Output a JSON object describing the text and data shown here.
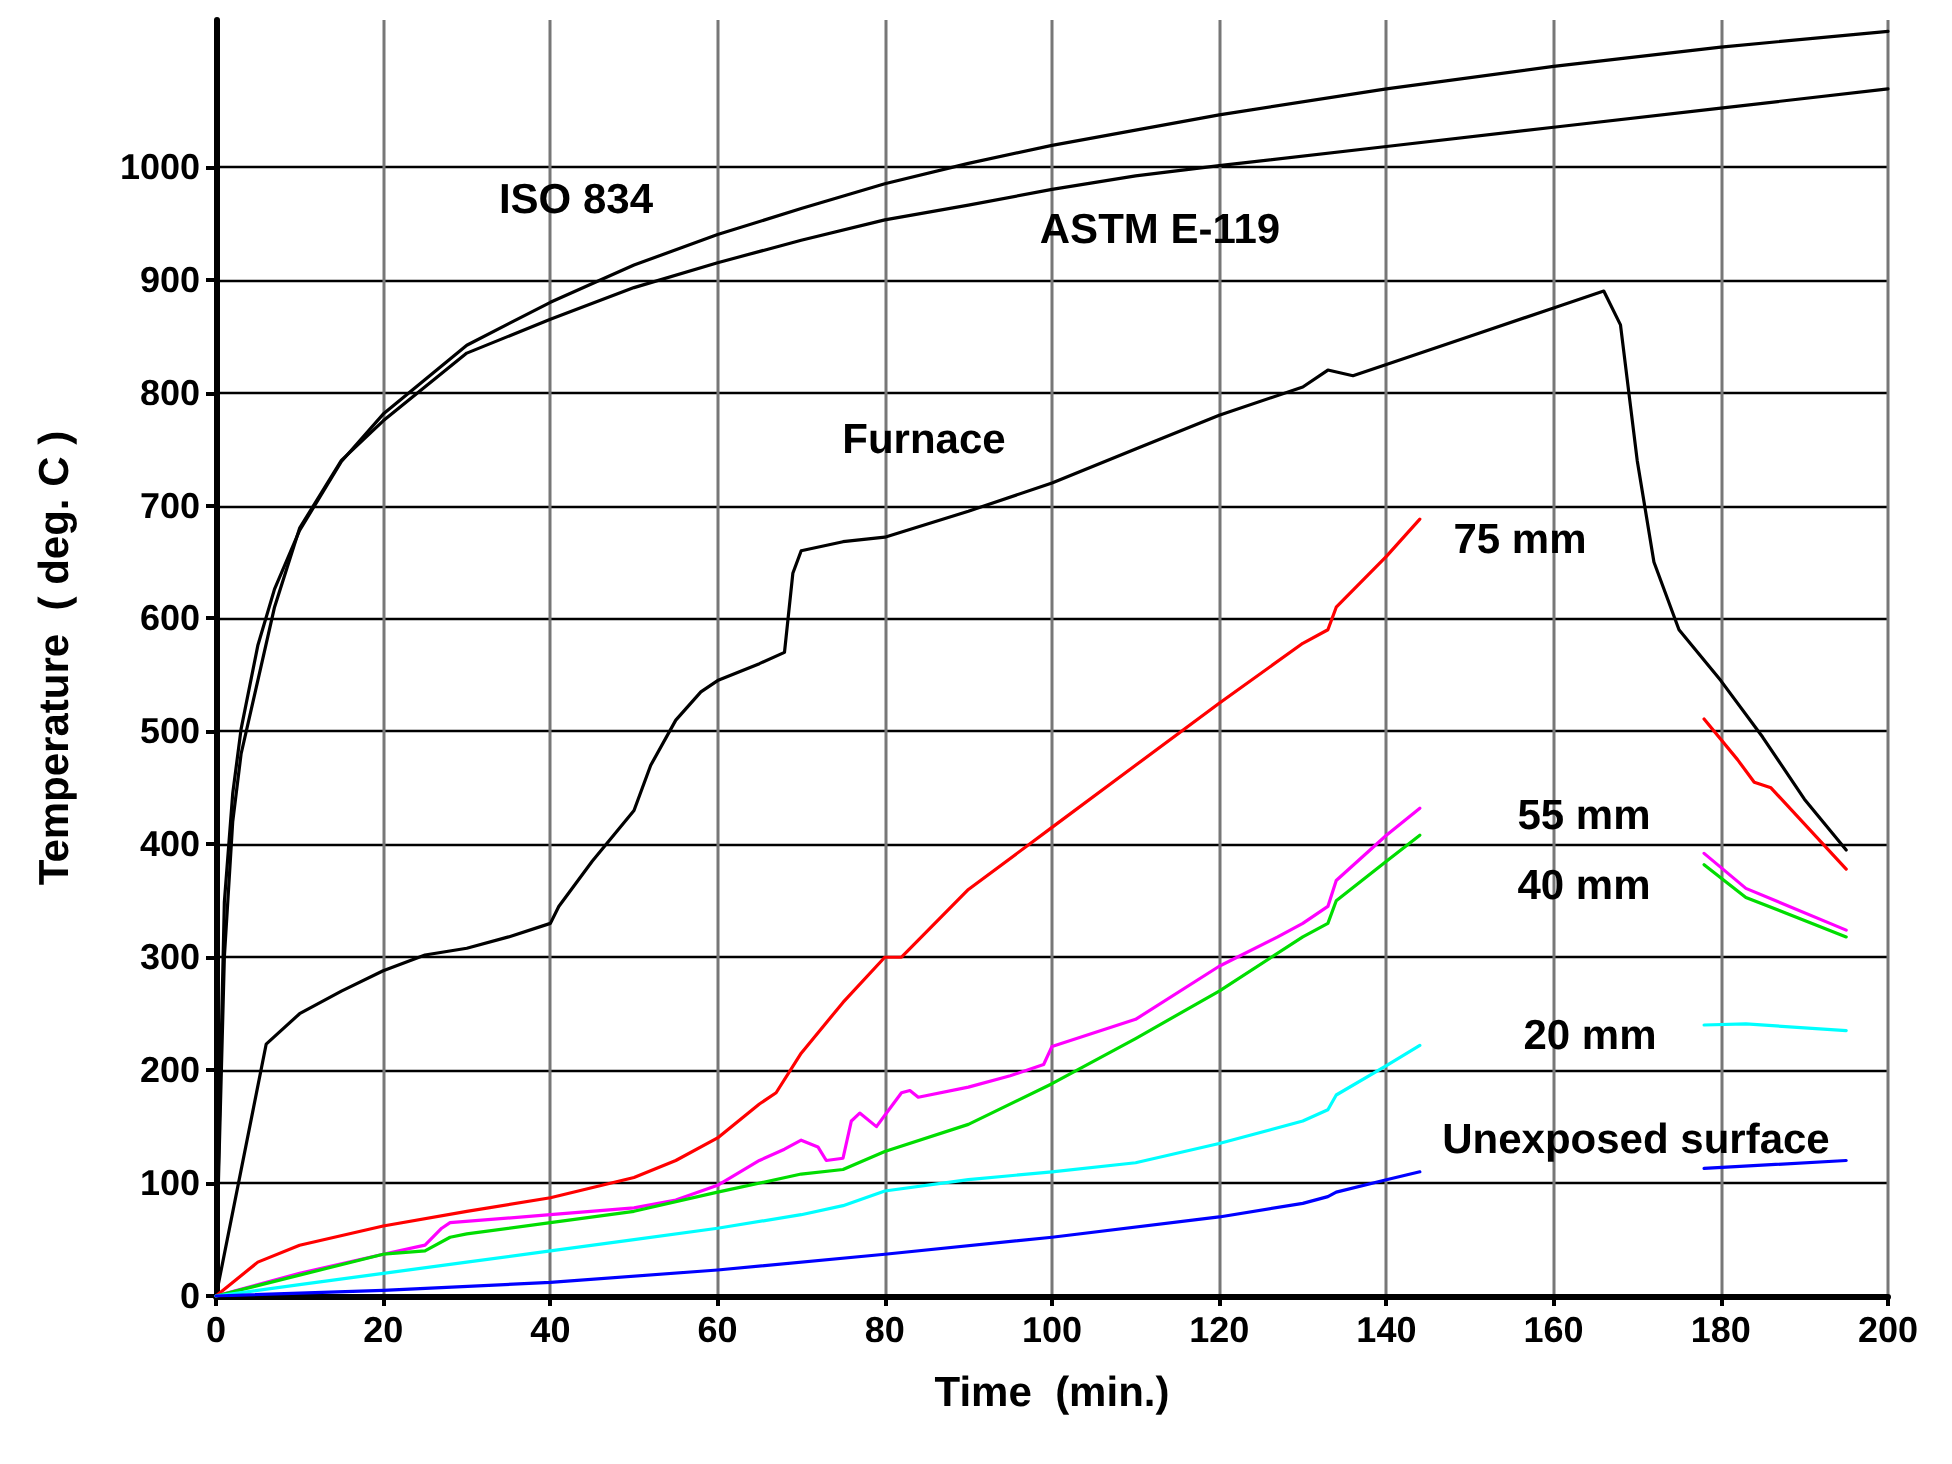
{
  "chart_data": {
    "type": "line",
    "xlabel": "Time  (min.)",
    "ylabel": "Temperature  ( deg. C )",
    "xlim": [
      0,
      200
    ],
    "xticks": [
      0,
      20,
      40,
      60,
      80,
      100,
      120,
      140,
      160,
      180,
      200
    ],
    "ylim": [
      0,
      1130
    ],
    "yticks": [
      0,
      100,
      200,
      300,
      400,
      500,
      600,
      700,
      800,
      900,
      1000
    ],
    "grid": true,
    "legend": false,
    "marker": "none",
    "line_style": "solid",
    "series": [
      {
        "name": "ISO 834",
        "color": "#000000",
        "x": [
          0,
          1,
          2,
          3,
          5,
          7,
          10,
          15,
          20,
          30,
          40,
          50,
          60,
          70,
          80,
          90,
          100,
          120,
          140,
          160,
          180,
          200
        ],
        "values": [
          20,
          349,
          445,
          502,
          576,
          626,
          678,
          739,
          781,
          842,
          880,
          913,
          940,
          963,
          985,
          1003,
          1019,
          1046,
          1069,
          1089,
          1106,
          1120
        ]
      },
      {
        "name": "ASTM E-119",
        "color": "#000000",
        "x": [
          0,
          1,
          2,
          3,
          5,
          7,
          10,
          15,
          20,
          30,
          40,
          50,
          60,
          70,
          80,
          90,
          100,
          110,
          120,
          140,
          160,
          180,
          200
        ],
        "values": [
          20,
          300,
          420,
          480,
          545,
          610,
          680,
          740,
          775,
          835,
          865,
          893,
          915,
          935,
          953,
          966,
          980,
          992,
          1001,
          1018,
          1035,
          1052,
          1069
        ]
      },
      {
        "name": "Furnace",
        "color": "#000000",
        "x": [
          0,
          6,
          10,
          15,
          20,
          25,
          30,
          35,
          40,
          41,
          45,
          50,
          52,
          55,
          58,
          60,
          65,
          68,
          69,
          70,
          75,
          80,
          90,
          100,
          110,
          120,
          130,
          133,
          136,
          140,
          150,
          160,
          166,
          168,
          170,
          172,
          175,
          180,
          185,
          190,
          195
        ],
        "values": [
          0,
          223,
          250,
          270,
          288,
          302,
          308,
          318,
          330,
          345,
          385,
          430,
          470,
          510,
          535,
          545,
          560,
          570,
          640,
          660,
          668,
          672,
          695,
          720,
          750,
          780,
          805,
          820,
          815,
          825,
          850,
          875,
          890,
          860,
          740,
          650,
          590,
          545,
          495,
          440,
          395
        ]
      },
      {
        "name": "75 mm",
        "color": "#ff0000",
        "x": [
          0,
          5,
          10,
          20,
          30,
          40,
          50,
          55,
          60,
          65,
          67,
          70,
          75,
          80,
          82,
          90,
          100,
          110,
          120,
          130,
          133,
          134,
          140,
          144,
          160,
          178,
          182,
          184,
          186,
          195
        ],
        "values": [
          0,
          30,
          45,
          62,
          75,
          87,
          105,
          120,
          140,
          170,
          180,
          215,
          260,
          300,
          300,
          360,
          415,
          470,
          525,
          578,
          590,
          610,
          655,
          688,
          null,
          511,
          475,
          455,
          450,
          378
        ]
      },
      {
        "name": "55 mm",
        "color": "#ff00ff",
        "x": [
          0,
          10,
          20,
          25,
          27,
          28,
          40,
          50,
          55,
          60,
          65,
          68,
          70,
          72,
          73,
          75,
          76,
          77,
          79,
          81,
          82,
          83,
          84,
          90,
          95,
          99,
          100,
          110,
          120,
          127,
          130,
          133,
          134,
          140,
          144,
          160,
          178,
          183,
          195
        ],
        "values": [
          0,
          20,
          37,
          45,
          60,
          65,
          72,
          78,
          85,
          98,
          120,
          130,
          138,
          132,
          120,
          122,
          155,
          162,
          150,
          170,
          180,
          182,
          176,
          185,
          195,
          205,
          221,
          245,
          292,
          318,
          330,
          345,
          368,
          408,
          432,
          null,
          392,
          361,
          324
        ]
      },
      {
        "name": "40 mm",
        "color": "#00dd00",
        "x": [
          0,
          20,
          25,
          28,
          30,
          40,
          50,
          60,
          70,
          75,
          80,
          90,
          100,
          110,
          120,
          130,
          133,
          134,
          140,
          144,
          160,
          178,
          183,
          195
        ],
        "values": [
          0,
          37,
          40,
          52,
          55,
          65,
          75,
          92,
          108,
          112,
          128,
          152,
          188,
          228,
          270,
          318,
          330,
          350,
          385,
          408,
          null,
          382,
          353,
          318
        ]
      },
      {
        "name": "20 mm",
        "color": "#00ffff",
        "x": [
          0,
          10,
          20,
          30,
          40,
          50,
          60,
          70,
          75,
          80,
          90,
          100,
          110,
          120,
          130,
          133,
          134,
          140,
          144,
          160,
          178,
          183,
          195
        ],
        "values": [
          0,
          10,
          20,
          30,
          40,
          50,
          60,
          72,
          80,
          93,
          103,
          110,
          118,
          135,
          155,
          165,
          178,
          204,
          222,
          null,
          240,
          241,
          235
        ]
      },
      {
        "name": "Unexposed surface",
        "color": "#0000ff",
        "x": [
          0,
          20,
          40,
          60,
          80,
          100,
          120,
          130,
          133,
          134,
          140,
          144,
          160,
          178,
          195
        ],
        "values": [
          0,
          5,
          12,
          23,
          37,
          52,
          70,
          82,
          88,
          92,
          103,
          110,
          null,
          113,
          120
        ]
      }
    ]
  }
}
